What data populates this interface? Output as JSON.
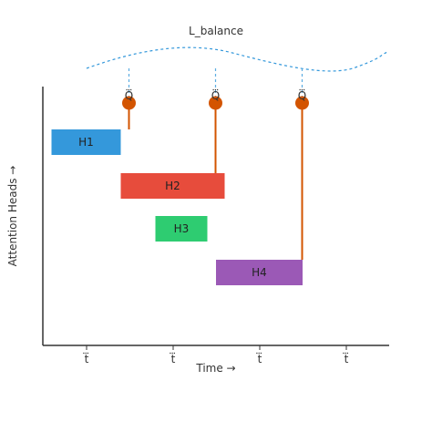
{
  "title": "L_balance",
  "x_axis_label": "Time →",
  "y_axis_label": "Attention Heads →",
  "ticks": [
    "t⃛",
    "t⃛",
    "t⃛",
    "t⃛"
  ],
  "heads": [
    {
      "label": "H1",
      "color": "#3498db",
      "start": 0.1,
      "end": 0.9
    },
    {
      "label": "H2",
      "color": "#e74c3c",
      "start": 0.9,
      "end": 2.1
    },
    {
      "label": "H3",
      "color": "#2ecc71",
      "start": 1.3,
      "end": 1.9
    },
    {
      "label": "H4",
      "color": "#9b59b6",
      "start": 2.0,
      "end": 3.0
    }
  ],
  "queries": [
    {
      "label": "Q⃛",
      "x": 1.0,
      "links_to_head": 0
    },
    {
      "label": "Q⃛",
      "x": 2.0,
      "links_to_head": 1
    },
    {
      "label": "Q⃛",
      "x": 3.0,
      "links_to_head": 3
    }
  ],
  "colors": {
    "query_dot": "#d35400",
    "query_line": "#d35400",
    "guide": "#5dade2",
    "balance_curve": "#3498db",
    "axis": "#333333"
  }
}
